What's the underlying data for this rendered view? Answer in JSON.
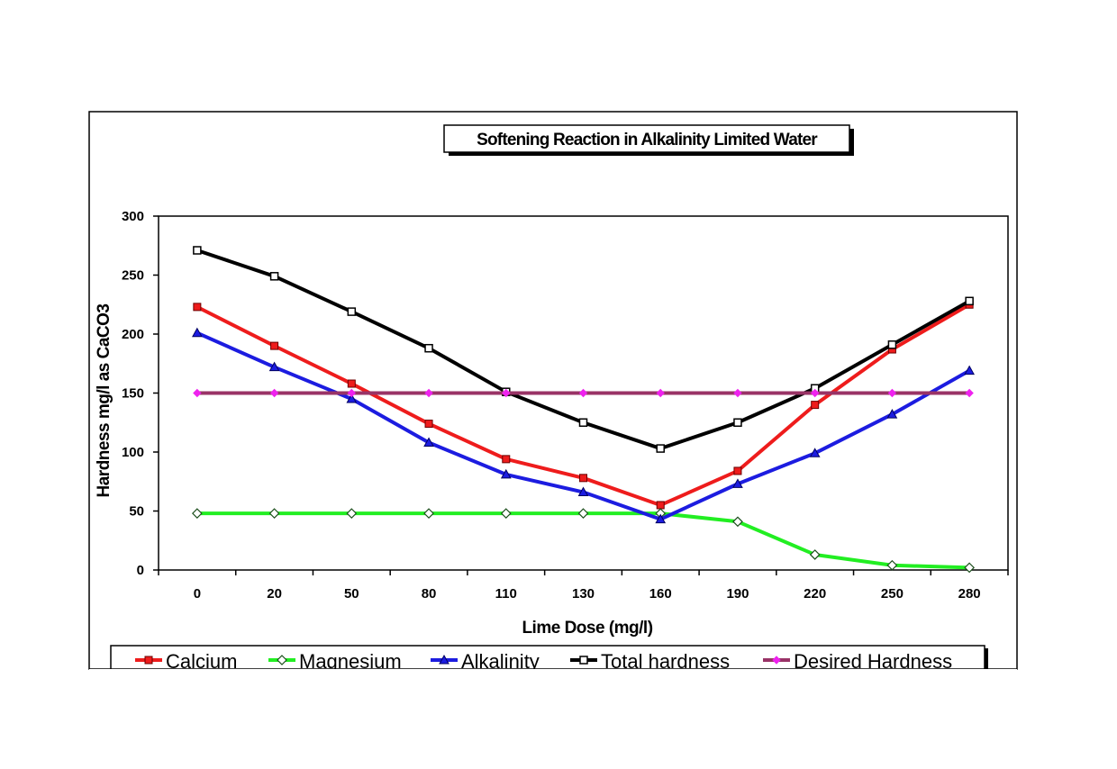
{
  "chart_data": {
    "type": "line",
    "title": "Softening Reaction in Alkalinity Limited Water",
    "xlabel": "Lime Dose (mg/l)",
    "ylabel": "Hardness mg/l as CaCO3",
    "categories": [
      "0",
      "20",
      "50",
      "80",
      "110",
      "130",
      "160",
      "190",
      "220",
      "250",
      "280"
    ],
    "ylim": [
      0,
      300
    ],
    "yticks": [
      "0",
      "50",
      "100",
      "150",
      "200",
      "250",
      "300"
    ],
    "grid": false,
    "legend_position": "bottom",
    "series": [
      {
        "name": "Calcium",
        "color": "#ee1c1c",
        "marker": "square-filled",
        "values": [
          223,
          190,
          158,
          124,
          94,
          78,
          55,
          84,
          140,
          187,
          225
        ]
      },
      {
        "name": "Magnesium",
        "color": "#22ee22",
        "marker": "diamond",
        "values": [
          48,
          48,
          48,
          48,
          48,
          48,
          48,
          41,
          13,
          4,
          2
        ]
      },
      {
        "name": "Alkalinity",
        "color": "#1c1ce0",
        "marker": "triangle",
        "values": [
          201,
          172,
          145,
          108,
          81,
          66,
          43,
          73,
          99,
          132,
          169
        ]
      },
      {
        "name": "Total hardness",
        "color": "#000000",
        "marker": "square-open",
        "values": [
          271,
          249,
          219,
          188,
          151,
          125,
          103,
          125,
          154,
          191,
          228
        ]
      },
      {
        "name": "Desired Hardness",
        "color": "#993366",
        "marker": "diamond-magenta",
        "values": [
          150,
          150,
          150,
          150,
          150,
          150,
          150,
          150,
          150,
          150,
          150
        ]
      }
    ]
  }
}
